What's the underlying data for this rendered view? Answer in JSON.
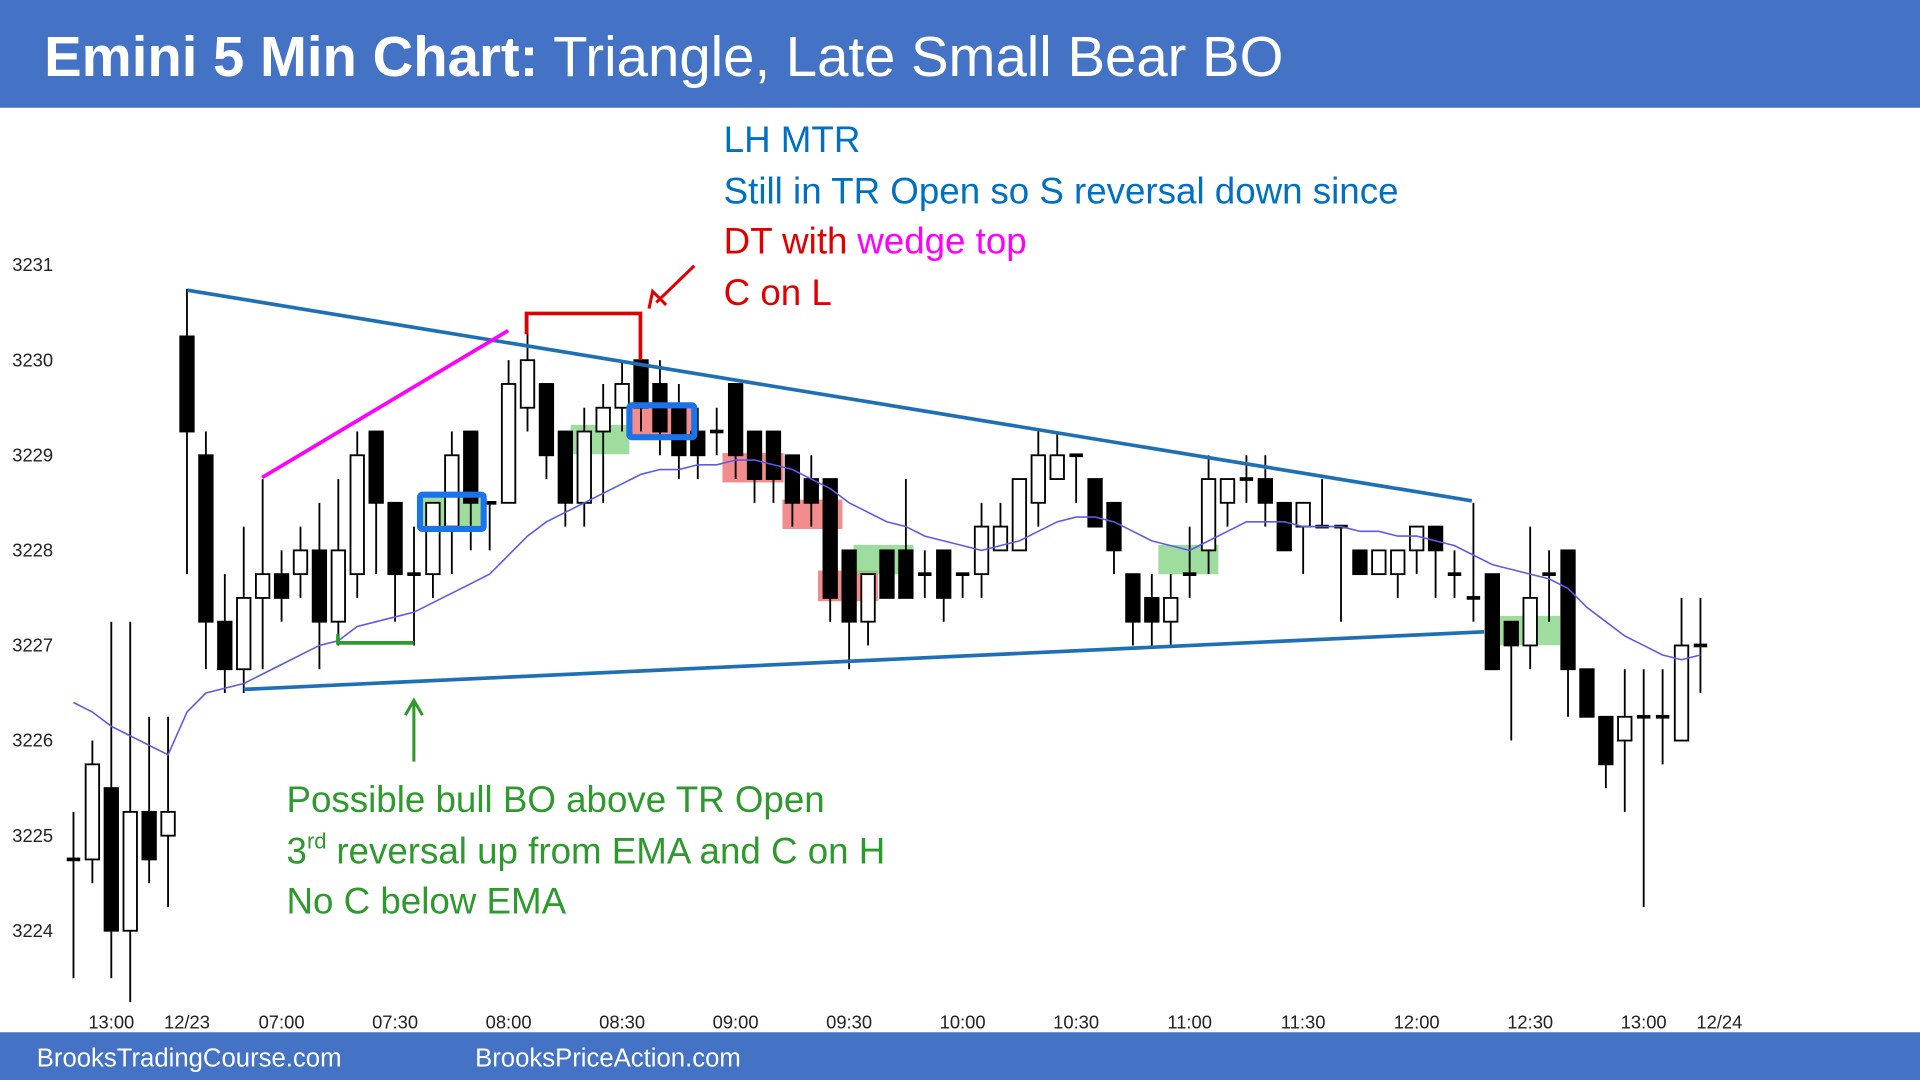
{
  "header": {
    "title_bold": "Emini 5 Min Chart:",
    "title_rest": "Triangle, Late Small Bear BO"
  },
  "chart_data": {
    "type": "candlestick",
    "categories": [
      null,
      null,
      "13:00",
      null,
      null,
      null,
      "12/23",
      null,
      null,
      null,
      null,
      "07:00",
      null,
      null,
      null,
      null,
      null,
      "07:30",
      null,
      null,
      null,
      null,
      null,
      "08:00",
      null,
      null,
      null,
      null,
      null,
      "08:30",
      null,
      null,
      null,
      null,
      null,
      "09:00",
      null,
      null,
      null,
      null,
      null,
      "09:30",
      null,
      null,
      null,
      null,
      null,
      "10:00",
      null,
      null,
      null,
      null,
      null,
      "10:30",
      null,
      null,
      null,
      null,
      null,
      "11:00",
      null,
      null,
      null,
      null,
      null,
      "11:30",
      null,
      null,
      null,
      null,
      null,
      "12:00",
      null,
      null,
      null,
      null,
      null,
      "12:30",
      null,
      null,
      null,
      null,
      null,
      "13:00",
      null,
      null,
      null,
      "12/24"
    ],
    "open": [
      3224.75,
      3224.75,
      3225.5,
      3224,
      3225.25,
      3225,
      3230.25,
      3229,
      3227.25,
      3226.75,
      3227.5,
      3227.75,
      3227.75,
      3228,
      3227.25,
      3227.75,
      3229.25,
      3228.5,
      3227.75,
      3227.75,
      3228.25,
      3229.25,
      3228.5,
      3228.5,
      3229.5,
      3229.75,
      3229.25,
      3228.5,
      3229.25,
      3229.5,
      3230,
      3229.75,
      3229.5,
      3229.25,
      3229.25,
      3229.75,
      3229.25,
      3229.25,
      3229,
      3228.75,
      3228.75,
      3228,
      3227.25,
      3228,
      3228,
      3227.75,
      3228,
      3227.75,
      3227.75,
      3228,
      3228,
      3228.5,
      3228.75,
      3229,
      3228.75,
      3228.5,
      3227.75,
      3227.5,
      3227.25,
      3227.75,
      3228,
      3228.5,
      3228.75,
      3228.75,
      3228.5,
      3228.25,
      3228.25,
      3228.25,
      3228,
      3227.75,
      3227.75,
      3228,
      3228.25,
      3227.75,
      3227.5,
      3227.75,
      3227.25,
      3227,
      3227.75,
      3228,
      3226.75,
      3226.25,
      3226,
      3226.25,
      3226.25,
      3226,
      3227,
      null
    ],
    "high": [
      3225.25,
      3226,
      3227.25,
      3227.25,
      3226.25,
      3226.25,
      3230.75,
      3229.25,
      3227.75,
      3228.25,
      3228.75,
      3228,
      3228.25,
      3228.5,
      3228.75,
      3229.25,
      3229.25,
      3228.5,
      3228.25,
      3228.5,
      3229.25,
      3229.25,
      3228.5,
      3230,
      3230.5,
      3229.75,
      3229.25,
      3229.5,
      3229.75,
      3230,
      3230.5,
      3230,
      3229.75,
      3229.5,
      3229.5,
      3229.75,
      3229.25,
      3229.25,
      3229,
      3229,
      3228.75,
      3228,
      3227.75,
      3228,
      3228.75,
      3228,
      3228,
      3227.75,
      3228.5,
      3228.5,
      3228.75,
      3229.25,
      3229.25,
      3229,
      3228.75,
      3228.5,
      3227.75,
      3227.75,
      3227.75,
      3228.25,
      3229,
      3228.75,
      3229,
      3229,
      3228.5,
      3228.5,
      3228.75,
      3228.25,
      3228,
      3228,
      3228,
      3228.25,
      3228.25,
      3228,
      3228.5,
      3227.75,
      3227.25,
      3228.25,
      3228,
      3228,
      3226.75,
      3226.25,
      3226.75,
      3226.75,
      3226.75,
      3227.5,
      3227.5,
      null
    ],
    "low": [
      3223.5,
      3224.5,
      3223.5,
      3223.25,
      3224.5,
      3224.25,
      3227.75,
      3226.75,
      3226.5,
      3226.5,
      3226.75,
      3227.25,
      3227.5,
      3226.75,
      3227,
      3227.5,
      3227.75,
      3227.25,
      3227,
      3227.5,
      3227.75,
      3228,
      3228,
      3228.5,
      3229.25,
      3228.75,
      3228.25,
      3228.25,
      3228.5,
      3229.25,
      3229.25,
      3229,
      3228.75,
      3228.75,
      3229,
      3228.75,
      3228.5,
      3228.5,
      3228.25,
      3228.25,
      3227.25,
      3226.75,
      3227,
      3227.5,
      3227.5,
      3227.5,
      3227.25,
      3227.5,
      3227.5,
      3228,
      3228,
      3228.25,
      3228.75,
      3228.5,
      3228.25,
      3227.75,
      3227,
      3227,
      3227,
      3227.5,
      3227.75,
      3228.25,
      3228.5,
      3228.25,
      3228,
      3227.75,
      3228.25,
      3227.25,
      3227.75,
      3227.75,
      3227.5,
      3227.75,
      3227.5,
      3227.5,
      3227.25,
      3226.75,
      3226,
      3226.75,
      3227.25,
      3226.25,
      3226.25,
      3225.5,
      3225.25,
      3224.25,
      3225.75,
      3226,
      3226.5,
      null
    ],
    "close": [
      3224.75,
      3225.75,
      3224,
      3225.25,
      3224.75,
      3225.25,
      3229.25,
      3227.25,
      3226.75,
      3227.5,
      3227.75,
      3227.5,
      3228,
      3227.25,
      3228,
      3229,
      3228.5,
      3227.75,
      3227.75,
      3228.5,
      3229,
      3228.5,
      3228.5,
      3229.75,
      3230,
      3229,
      3228.5,
      3229.25,
      3229.5,
      3229.75,
      3229.5,
      3229.25,
      3229,
      3229,
      3229.25,
      3229,
      3228.75,
      3228.75,
      3228.5,
      3228.5,
      3227.5,
      3227.25,
      3227.75,
      3227.5,
      3227.5,
      3227.75,
      3227.5,
      3227.75,
      3228.25,
      3228.25,
      3228.75,
      3229,
      3229,
      3229,
      3228.25,
      3228,
      3227.25,
      3227.25,
      3227.5,
      3227.75,
      3228.75,
      3228.75,
      3228.75,
      3228.5,
      3228,
      3228.5,
      3228.25,
      3228.25,
      3227.75,
      3228,
      3228,
      3228.25,
      3228,
      3227.75,
      3227.5,
      3226.75,
      3227,
      3227.5,
      3227.75,
      3226.75,
      3226.25,
      3225.75,
      3226.25,
      3226.25,
      3226.25,
      3227,
      3227,
      null
    ],
    "ema": [
      3226.4,
      3226.3,
      3226.15,
      3226.05,
      3225.95,
      3225.85,
      3226.3,
      3226.5,
      3226.55,
      3226.6,
      3226.7,
      3226.8,
      3226.9,
      3227,
      3227.05,
      3227.2,
      3227.25,
      3227.3,
      3227.35,
      3227.45,
      3227.55,
      3227.65,
      3227.75,
      3227.95,
      3228.15,
      3228.3,
      3228.4,
      3228.5,
      3228.6,
      3228.7,
      3228.8,
      3228.85,
      3228.85,
      3228.9,
      3228.9,
      3228.95,
      3228.95,
      3228.9,
      3228.85,
      3228.75,
      3228.65,
      3228.5,
      3228.4,
      3228.3,
      3228.25,
      3228.15,
      3228.1,
      3228.05,
      3228,
      3228.05,
      3228.1,
      3228.2,
      3228.3,
      3228.35,
      3228.35,
      3228.3,
      3228.2,
      3228.1,
      3228.05,
      3228,
      3228.1,
      3228.2,
      3228.3,
      3228.3,
      3228.3,
      3228.25,
      3228.25,
      3228.25,
      3228.2,
      3228.2,
      3228.15,
      3228.15,
      3228.1,
      3228.05,
      3227.95,
      3227.85,
      3227.8,
      3227.75,
      3227.7,
      3227.6,
      3227.4,
      3227.25,
      3227.1,
      3227,
      3226.9,
      3226.85,
      3226.9,
      null
    ],
    "ema_color": "#5b5bea",
    "bull_color": "#ffffff",
    "bear_color": "#000000",
    "ylim": [
      3223.1,
      3232.5
    ],
    "yticks": [
      3224,
      3225,
      3226,
      3227,
      3228,
      3229,
      3230,
      3231
    ]
  },
  "annotations": {
    "lh_mtr": "LH MTR",
    "still": "Still in TR Open so S reversal down since",
    "dt": "DT with",
    "wedge": "wedge top",
    "c_on_l": "C on L",
    "bull_bo": "Possible bull BO above TR Open",
    "third_num": "3",
    "third_sup": "rd",
    "third_rest": "reversal up from EMA and C on H",
    "no_c": "No C below EMA"
  },
  "footer": {
    "left": "BrooksTradingCourse.com",
    "right": "BrooksPriceAction.com"
  }
}
